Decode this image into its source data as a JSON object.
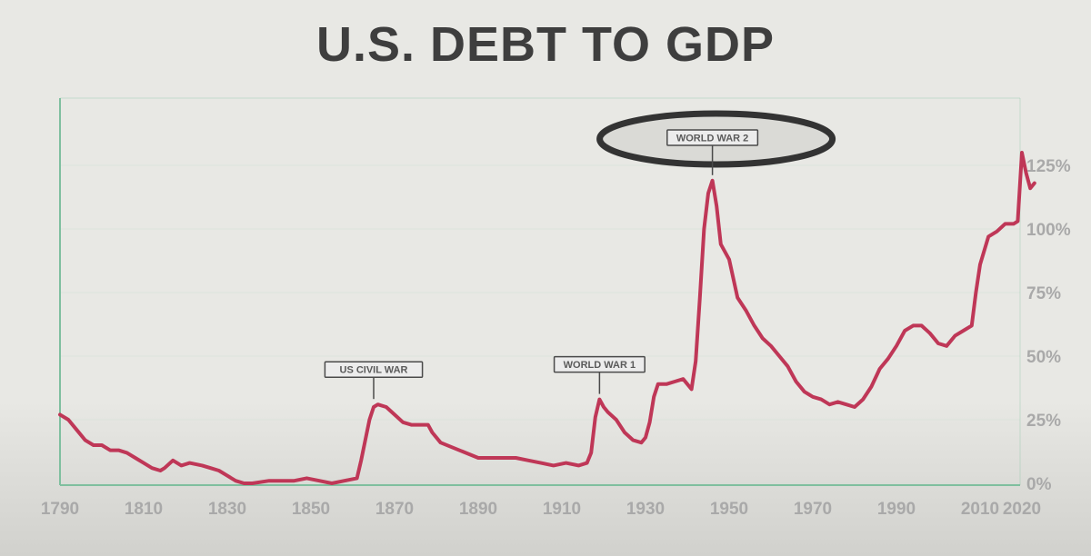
{
  "colors": {
    "background": "#e8e8e4",
    "line": "#bf3757",
    "axis": "#7fbf9f",
    "gridline": "#c9dccf",
    "tick_text": "#a9a9a9",
    "title": "#3e3e3e",
    "annotation_border": "#4a4a4a",
    "highlight_ellipse": "#333333"
  },
  "chart_data": {
    "type": "line",
    "title": "U.S. DEBT TO GDP",
    "xlabel": "",
    "ylabel": "",
    "xlim": [
      1790,
      2020
    ],
    "ylim": [
      0,
      135
    ],
    "x_ticks": [
      "1790",
      "1810",
      "1830",
      "1850",
      "1870",
      "1890",
      "1910",
      "1930",
      "1950",
      "1970",
      "1990",
      "2010",
      "2020"
    ],
    "y_ticks": [
      "0%",
      "25%",
      "50%",
      "75%",
      "100%",
      "125%"
    ],
    "grid": false,
    "series": [
      {
        "values": [
          [
            1790,
            27
          ],
          [
            1792,
            25
          ],
          [
            1794,
            21
          ],
          [
            1796,
            17
          ],
          [
            1798,
            15
          ],
          [
            1800,
            15
          ],
          [
            1802,
            13
          ],
          [
            1804,
            13
          ],
          [
            1806,
            12
          ],
          [
            1808,
            10
          ],
          [
            1810,
            8
          ],
          [
            1812,
            6
          ],
          [
            1814,
            5
          ],
          [
            1815,
            6
          ],
          [
            1817,
            9
          ],
          [
            1819,
            7
          ],
          [
            1821,
            8
          ],
          [
            1824,
            7
          ],
          [
            1826,
            6
          ],
          [
            1828,
            5
          ],
          [
            1830,
            3
          ],
          [
            1832,
            1
          ],
          [
            1834,
            0
          ],
          [
            1836,
            0
          ],
          [
            1840,
            1
          ],
          [
            1843,
            1
          ],
          [
            1846,
            1
          ],
          [
            1849,
            2
          ],
          [
            1852,
            1
          ],
          [
            1855,
            0
          ],
          [
            1858,
            1
          ],
          [
            1861,
            2
          ],
          [
            1862,
            9
          ],
          [
            1863,
            17
          ],
          [
            1864,
            25
          ],
          [
            1865,
            30
          ],
          [
            1866,
            31
          ],
          [
            1868,
            30
          ],
          [
            1870,
            27
          ],
          [
            1872,
            24
          ],
          [
            1874,
            23
          ],
          [
            1876,
            23
          ],
          [
            1878,
            23
          ],
          [
            1879,
            20
          ],
          [
            1881,
            16
          ],
          [
            1884,
            14
          ],
          [
            1887,
            12
          ],
          [
            1890,
            10
          ],
          [
            1893,
            10
          ],
          [
            1896,
            10
          ],
          [
            1899,
            10
          ],
          [
            1902,
            9
          ],
          [
            1905,
            8
          ],
          [
            1908,
            7
          ],
          [
            1911,
            8
          ],
          [
            1914,
            7
          ],
          [
            1916,
            8
          ],
          [
            1917,
            12
          ],
          [
            1918,
            26
          ],
          [
            1919,
            33
          ],
          [
            1920,
            30
          ],
          [
            1921,
            28
          ],
          [
            1923,
            25
          ],
          [
            1925,
            20
          ],
          [
            1927,
            17
          ],
          [
            1929,
            16
          ],
          [
            1930,
            18
          ],
          [
            1931,
            24
          ],
          [
            1932,
            34
          ],
          [
            1933,
            39
          ],
          [
            1935,
            39
          ],
          [
            1937,
            40
          ],
          [
            1939,
            41
          ],
          [
            1941,
            37
          ],
          [
            1942,
            48
          ],
          [
            1943,
            73
          ],
          [
            1944,
            100
          ],
          [
            1945,
            114
          ],
          [
            1946,
            119
          ],
          [
            1947,
            109
          ],
          [
            1948,
            94
          ],
          [
            1950,
            88
          ],
          [
            1952,
            73
          ],
          [
            1954,
            68
          ],
          [
            1956,
            62
          ],
          [
            1958,
            57
          ],
          [
            1960,
            54
          ],
          [
            1962,
            50
          ],
          [
            1964,
            46
          ],
          [
            1966,
            40
          ],
          [
            1968,
            36
          ],
          [
            1970,
            34
          ],
          [
            1972,
            33
          ],
          [
            1974,
            31
          ],
          [
            1976,
            32
          ],
          [
            1978,
            31
          ],
          [
            1980,
            30
          ],
          [
            1982,
            33
          ],
          [
            1984,
            38
          ],
          [
            1986,
            45
          ],
          [
            1988,
            49
          ],
          [
            1990,
            54
          ],
          [
            1992,
            60
          ],
          [
            1994,
            62
          ],
          [
            1996,
            62
          ],
          [
            1998,
            59
          ],
          [
            2000,
            55
          ],
          [
            2002,
            54
          ],
          [
            2004,
            58
          ],
          [
            2006,
            60
          ],
          [
            2008,
            62
          ],
          [
            2009,
            75
          ],
          [
            2010,
            86
          ],
          [
            2012,
            97
          ],
          [
            2014,
            99
          ],
          [
            2016,
            102
          ],
          [
            2018,
            102
          ],
          [
            2019,
            103
          ],
          [
            2020,
            130
          ],
          [
            2021,
            122
          ],
          [
            2022,
            116
          ],
          [
            2023,
            118
          ]
        ]
      }
    ],
    "annotations": [
      {
        "label": "US CIVIL WAR",
        "x": 1865,
        "y": 31,
        "highlighted": false
      },
      {
        "label": "WORLD WAR 1",
        "x": 1919,
        "y": 33,
        "highlighted": false
      },
      {
        "label": "WORLD WAR 2",
        "x": 1946,
        "y": 119,
        "highlighted": true
      }
    ]
  }
}
